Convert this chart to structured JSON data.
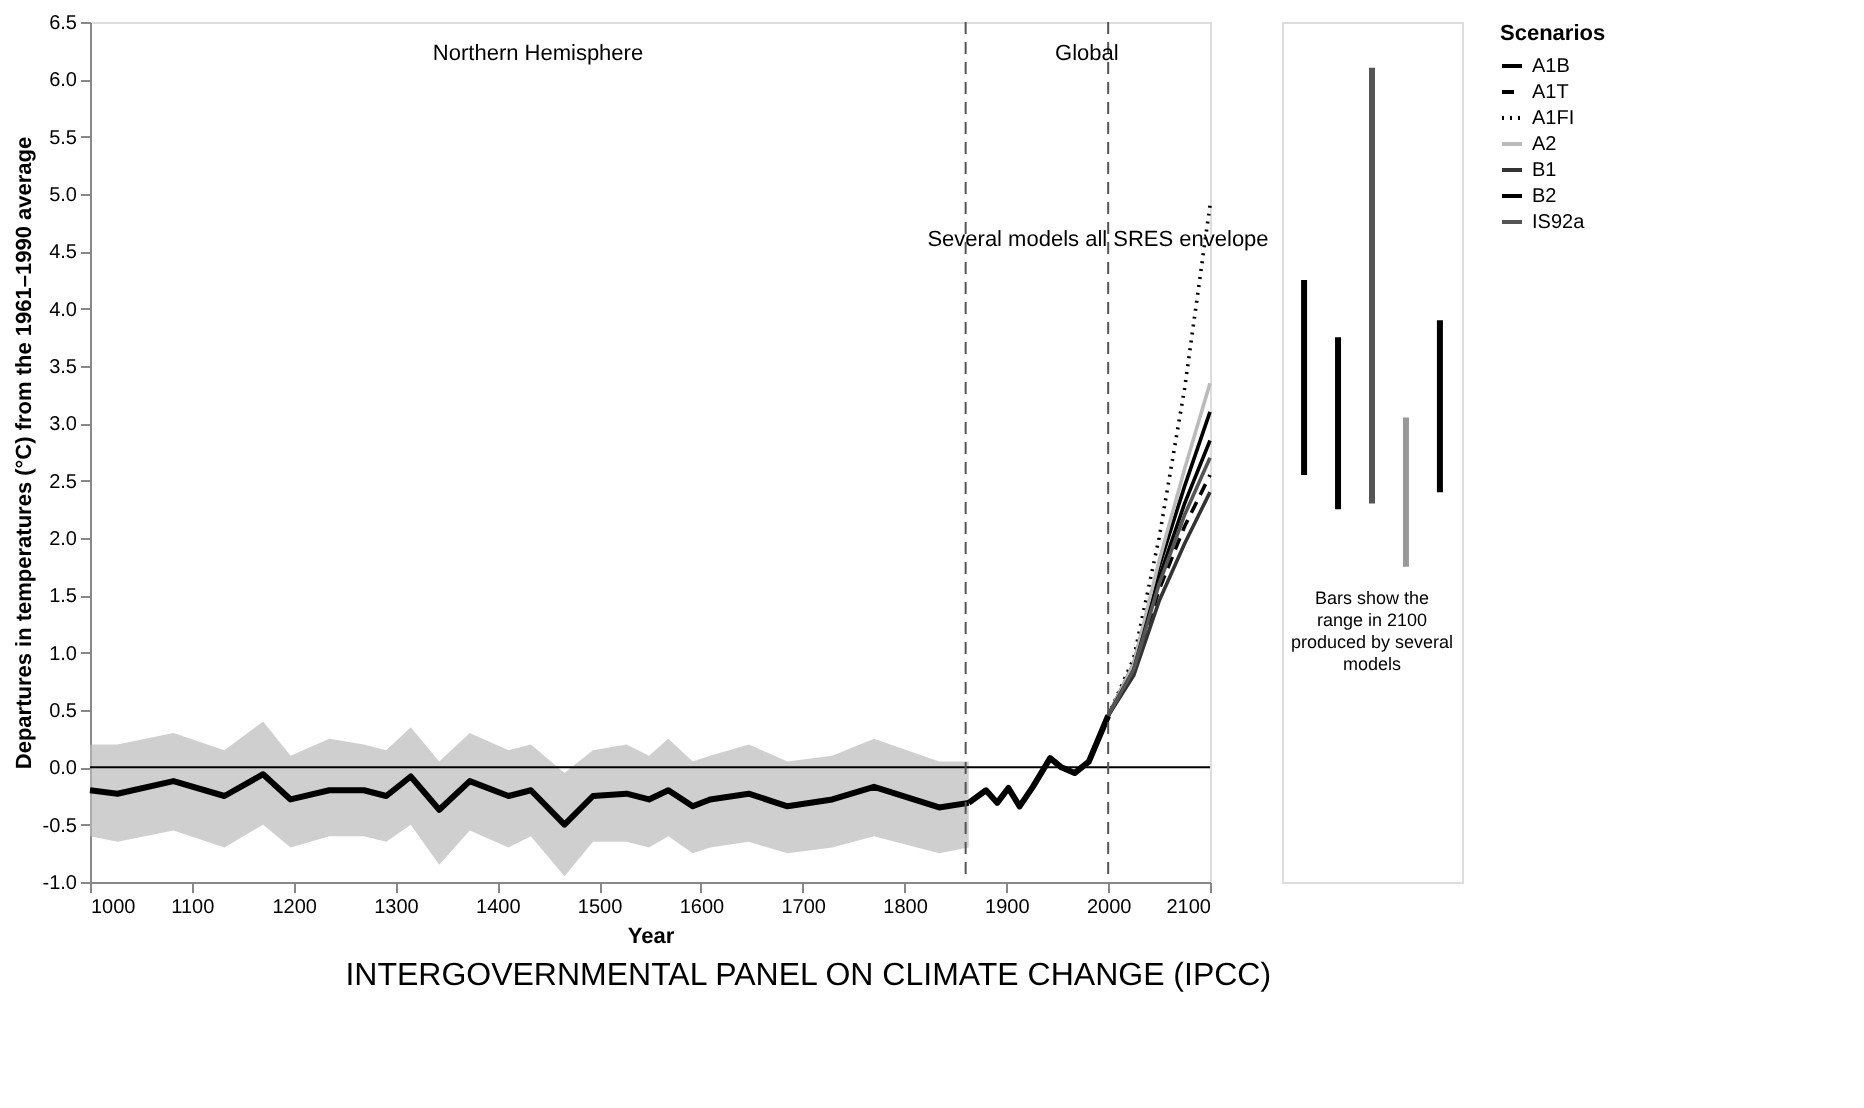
{
  "chart_data": [
    {
      "type": "line",
      "xlabel": "Year",
      "ylabel": "Departures in temperatures (°C) from the 1961–1990 average",
      "legend_title": "Scenarios",
      "legend": "right",
      "xlim": [
        1000,
        2100
      ],
      "ylim": [
        -1.0,
        6.5
      ],
      "xticks": [
        1000,
        1100,
        1200,
        1300,
        1400,
        1500,
        1600,
        1700,
        1800,
        1900,
        2000,
        2100
      ],
      "yticks": [
        {
          "value": -1,
          "label": "-1.0"
        },
        -0.5,
        {
          "value": 0,
          "label": "0.0"
        },
        0.5,
        {
          "value": 1,
          "label": "1.0"
        },
        1.5,
        {
          "value": 2,
          "label": "2.0"
        },
        2.5,
        {
          "value": 3,
          "label": "3.0"
        },
        3.5,
        {
          "value": 4,
          "label": "4.0"
        },
        4.5,
        {
          "value": 5,
          "label": "5.0"
        },
        5.5,
        {
          "value": 6,
          "label": "6.0"
        },
        6.5
      ],
      "grid": false,
      "series": [
        {
          "color": "#000000",
          "line_style": "solid",
          "x": [
            1000,
            1027,
            1082,
            1132,
            1170,
            1197,
            1235,
            1269,
            1291,
            1315,
            1343,
            1373,
            1411,
            1433,
            1466,
            1494,
            1527,
            1549,
            1568,
            1592,
            1609,
            1647,
            1685,
            1729,
            1770,
            1834,
            1863
          ],
          "values": [
            -0.2,
            -0.23,
            -0.12,
            -0.25,
            -0.06,
            -0.28,
            -0.2,
            -0.2,
            -0.25,
            -0.08,
            -0.37,
            -0.12,
            -0.25,
            -0.2,
            -0.5,
            -0.25,
            -0.23,
            -0.28,
            -0.2,
            -0.34,
            -0.28,
            -0.23,
            -0.34,
            -0.28,
            -0.17,
            -0.35,
            -0.31
          ],
          "lower": [
            -0.6,
            -0.65,
            -0.55,
            -0.7,
            -0.5,
            -0.7,
            -0.6,
            -0.6,
            -0.65,
            -0.5,
            -0.85,
            -0.55,
            -0.7,
            -0.6,
            -0.95,
            -0.65,
            -0.65,
            -0.7,
            -0.6,
            -0.75,
            -0.7,
            -0.65,
            -0.75,
            -0.7,
            -0.6,
            -0.75,
            -0.7
          ],
          "upper": [
            0.2,
            0.2,
            0.3,
            0.15,
            0.4,
            0.1,
            0.25,
            0.2,
            0.15,
            0.35,
            0.05,
            0.3,
            0.15,
            0.2,
            -0.05,
            0.15,
            0.2,
            0.1,
            0.25,
            0.05,
            0.1,
            0.2,
            0.05,
            0.1,
            0.25,
            0.05,
            0.05
          ]
        },
        {
          "color": "#000000",
          "line_style": "solid",
          "x": [
            1863,
            1880,
            1891,
            1902,
            1913,
            1926,
            1943,
            1954,
            1967,
            1981,
            2000
          ],
          "values": [
            -0.31,
            -0.2,
            -0.31,
            -0.18,
            -0.34,
            -0.17,
            0.08,
            0.0,
            -0.05,
            0.05,
            0.45
          ]
        },
        {
          "name": "A1B",
          "color": "#000000",
          "line_style": "solid",
          "x": [
            2000,
            2025,
            2050,
            2075,
            2100
          ],
          "values": [
            0.45,
            0.9,
            1.75,
            2.45,
            3.1
          ]
        },
        {
          "name": "A1T",
          "color": "#000000",
          "line_style": "dashed",
          "x": [
            2000,
            2025,
            2050,
            2075,
            2100
          ],
          "values": [
            0.45,
            0.85,
            1.55,
            2.1,
            2.55
          ]
        },
        {
          "name": "A1FI",
          "color": "#000000",
          "line_style": "dotted",
          "x": [
            2000,
            2025,
            2050,
            2075,
            2100
          ],
          "values": [
            0.45,
            0.95,
            2.0,
            3.3,
            4.9
          ]
        },
        {
          "name": "A2",
          "color": "#bbbbbb",
          "line_style": "solid",
          "x": [
            2000,
            2025,
            2050,
            2075,
            2100
          ],
          "values": [
            0.45,
            0.9,
            1.8,
            2.6,
            3.35
          ]
        },
        {
          "name": "B1",
          "color": "#333333",
          "line_style": "solid",
          "x": [
            2000,
            2025,
            2050,
            2075,
            2100
          ],
          "values": [
            0.45,
            0.8,
            1.45,
            1.95,
            2.4
          ]
        },
        {
          "name": "B2",
          "color": "#000000",
          "line_style": "solid",
          "x": [
            2000,
            2025,
            2050,
            2075,
            2100
          ],
          "values": [
            0.45,
            0.85,
            1.65,
            2.3,
            2.85
          ]
        },
        {
          "name": "IS92a",
          "color": "#555555",
          "line_style": "solid",
          "x": [
            2000,
            2025,
            2050,
            2075,
            2100
          ],
          "values": [
            0.45,
            0.85,
            1.6,
            2.2,
            2.7
          ]
        }
      ],
      "ref_lines": [
        {
          "axis": "y",
          "value": 0,
          "color": "#000000",
          "line_style": "solid"
        },
        {
          "axis": "x",
          "value": 1860,
          "color": "#555555",
          "line_style": "dashed"
        },
        {
          "axis": "x",
          "value": 2000,
          "color": "#555555",
          "line_style": "dashed"
        }
      ],
      "annotations": [
        "Northern Hemisphere",
        "Global",
        {
          "text": "Several models all SRES envelope",
          "x": 1990,
          "y": 4.6
        },
        "INTERGOVERNMENTAL PANEL ON CLIMATE CHANGE (IPCC)"
      ]
    },
    {
      "type": "bar",
      "categories": [
        null,
        null,
        null,
        null,
        null
      ],
      "ylim": [
        -1.0,
        6.5
      ],
      "tick_labels": false,
      "base": [
        2.55,
        2.25,
        2.3,
        1.75,
        2.4
      ],
      "values": [
        1.7,
        1.5,
        3.8,
        1.3,
        1.5
      ],
      "colors": [
        "#000000",
        "#000000",
        "#555555",
        "#999999",
        "#000000"
      ],
      "annotations": [
        "Bars show the range in 2100 produced by several models"
      ]
    }
  ]
}
